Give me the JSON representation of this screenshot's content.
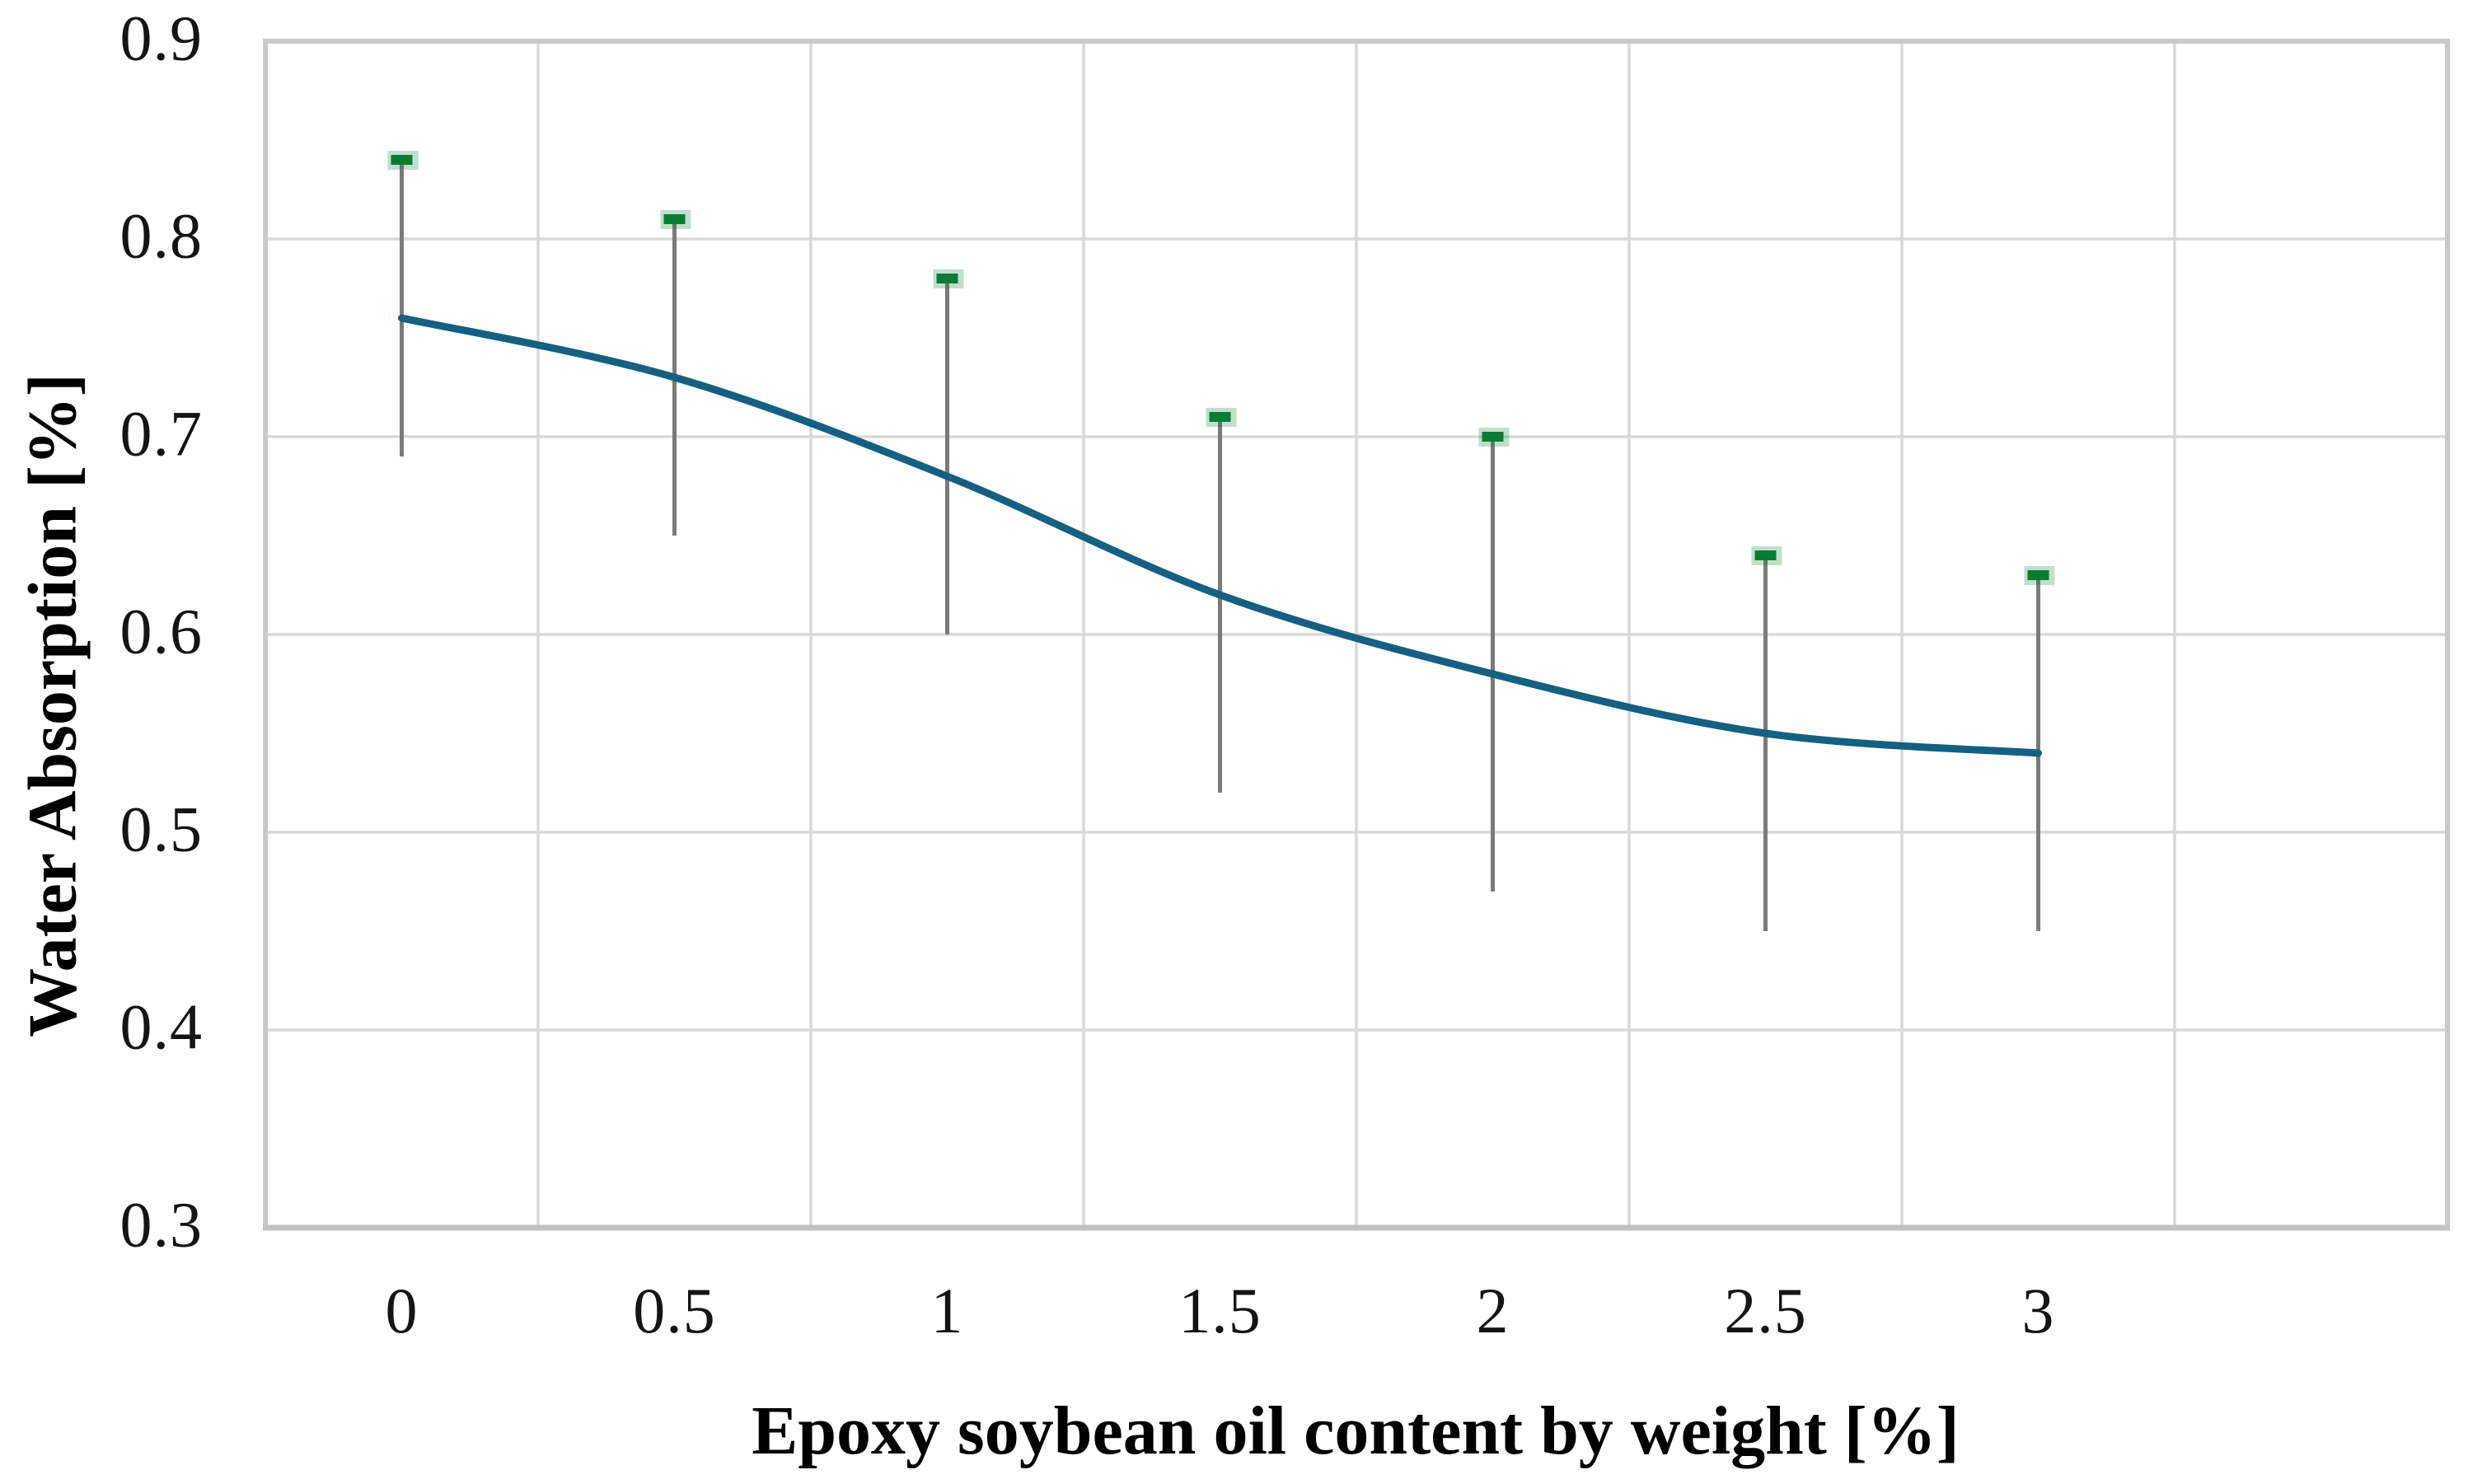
{
  "figure": {
    "background": "#ffffff"
  },
  "chart_data": {
    "type": "line",
    "title": "",
    "xlabel": "Epoxy soybean oil content by weight [%]",
    "ylabel": "Water Absorption [%]",
    "categories": [
      "0",
      "0.5",
      "1",
      "1.5",
      "2",
      "2.5",
      "3"
    ],
    "x_values": [
      0,
      0.5,
      1,
      1.5,
      2,
      2.5,
      3
    ],
    "series": [
      {
        "name": "Water absorption",
        "values": [
          0.76,
          0.73,
          0.68,
          0.62,
          0.58,
          0.55,
          0.54
        ],
        "color": "#156082",
        "smooth": true,
        "line_width": 9
      }
    ],
    "error_bars": {
      "top": [
        0.84,
        0.81,
        0.78,
        0.71,
        0.7,
        0.64,
        0.63
      ],
      "bottom": [
        0.69,
        0.65,
        0.6,
        0.52,
        0.47,
        0.45,
        0.45
      ],
      "line_color": "#7a7a7a",
      "cap_color": "#077c35",
      "cap_halo_color": "#077c35"
    },
    "ylim": [
      0.3,
      0.9
    ],
    "yticks": [
      "0.9",
      "0.8",
      "0.7",
      "0.6",
      "0.5",
      "0.4",
      "0.3"
    ],
    "grid": true,
    "gridline_color": "#d9d9d9",
    "border_color": "#c9c9c9",
    "bottom_axis_color": "#c2c2c2",
    "legend_position": "none",
    "extra_empty_slots": 1
  }
}
